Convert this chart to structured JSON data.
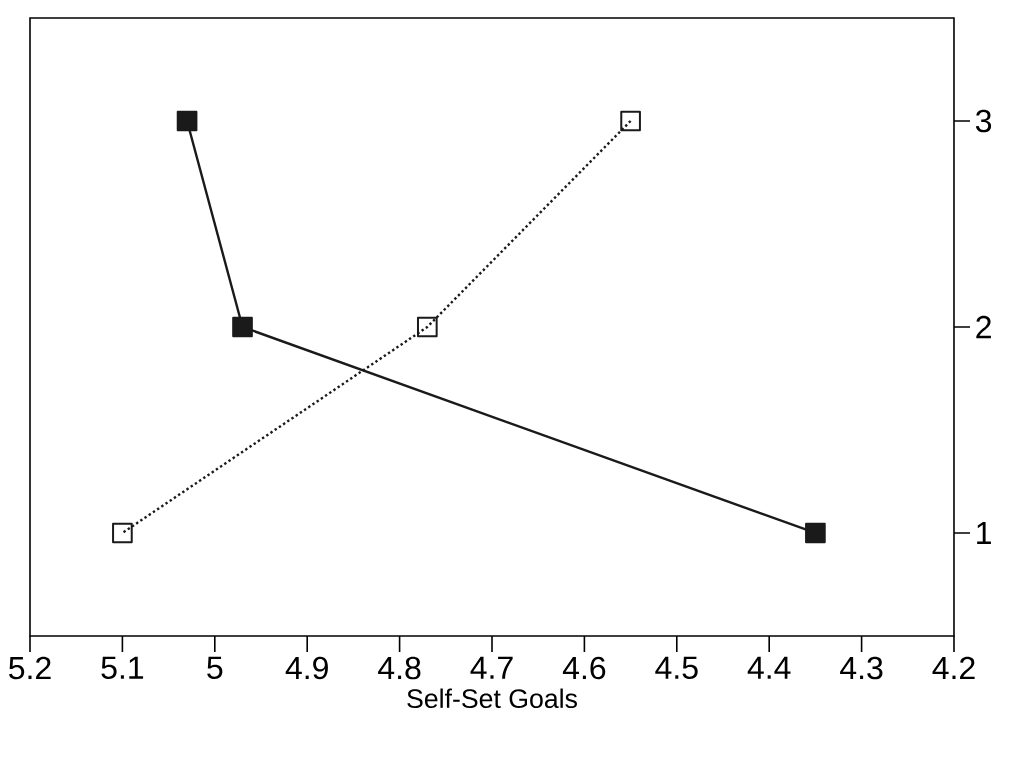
{
  "chart_data": {
    "type": "line",
    "orientation": "horizontal",
    "xlabel": "Self-Set Goals",
    "categories": [
      "3",
      "2",
      "1"
    ],
    "series": [
      {
        "color": "#1a1a1a",
        "values": [
          5.03,
          4.97,
          4.35
        ],
        "marker": "square",
        "line_style": "solid"
      },
      {
        "color": "#1a1a1a",
        "values": [
          4.55,
          4.77,
          5.1
        ],
        "marker": "square_open",
        "line_style": "dotted"
      }
    ],
    "xlim": [
      5.2,
      4.2
    ],
    "xticks": [
      5.2,
      5.1,
      5,
      4.9,
      4.8,
      4.7,
      4.6,
      4.5,
      4.4,
      4.3,
      4.2
    ],
    "grid": false
  }
}
